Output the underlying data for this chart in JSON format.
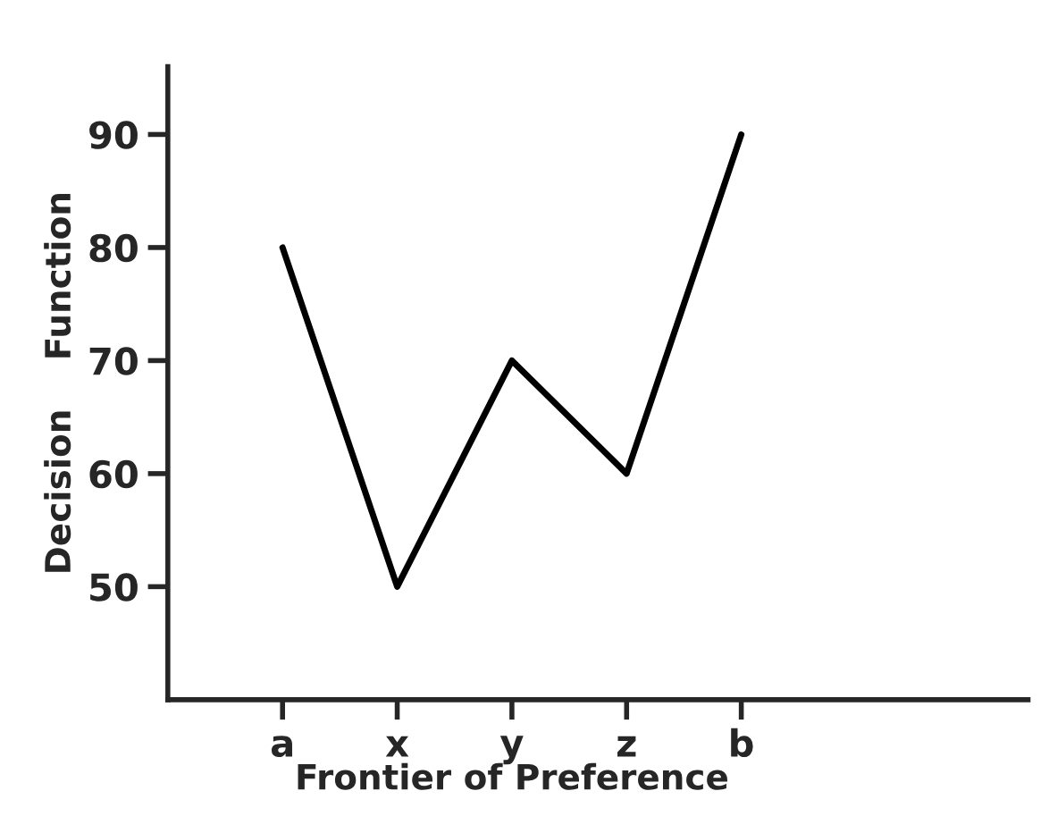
{
  "chart_data": {
    "type": "line",
    "categories": [
      "a",
      "x",
      "y",
      "z",
      "b"
    ],
    "series": [
      {
        "color": "#000000",
        "values": [
          80,
          50,
          70,
          60,
          90
        ]
      }
    ],
    "xlabel": "Frontier of Preference",
    "ylabel": "Decision    Function",
    "ylim": [
      40,
      96
    ],
    "yticks": [
      50,
      60,
      70,
      80,
      90
    ],
    "grid": false,
    "marker": "none",
    "line_style": "solid"
  }
}
